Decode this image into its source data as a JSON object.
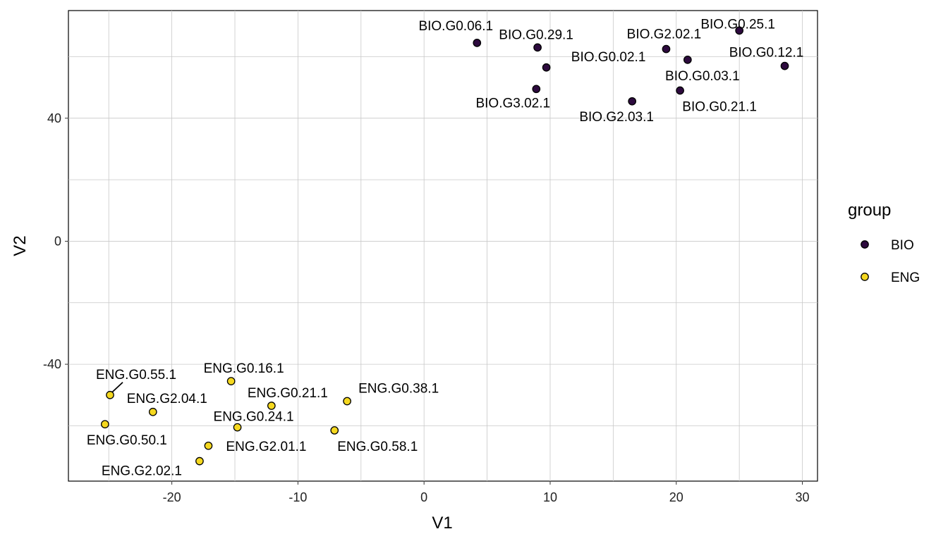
{
  "chart_data": {
    "type": "scatter",
    "xlabel": "V1",
    "ylabel": "V2",
    "xlim": [
      -28.2,
      31.2
    ],
    "ylim": [
      -78,
      75
    ],
    "x_ticks": [
      -20,
      -10,
      0,
      10,
      20,
      30
    ],
    "y_ticks": [
      -40,
      0,
      40
    ],
    "grid": true,
    "legend": {
      "title": "group",
      "placement": "right",
      "entries": [
        {
          "name": "BIO",
          "color": "#2d0a3e"
        },
        {
          "name": "ENG",
          "color": "#f5d81f"
        }
      ]
    },
    "series": [
      {
        "name": "BIO",
        "color": "#2d0a3e",
        "points": [
          {
            "label": "BIO.G0.06.1",
            "x": 4.2,
            "y": 64.5
          },
          {
            "label": "BIO.G0.29.1",
            "x": 9.0,
            "y": 63.0
          },
          {
            "label": "BIO.G2.02.1",
            "x": 19.2,
            "y": 62.5
          },
          {
            "label": "BIO.G0.25.1",
            "x": 25.0,
            "y": 68.5
          },
          {
            "label": "BIO.G0.02.1",
            "x": 9.7,
            "y": 56.5
          },
          {
            "label": "BIO.G0.12.1",
            "x": 28.6,
            "y": 57.0
          },
          {
            "label": "BIO.G0.03.1",
            "x": 20.9,
            "y": 59.0
          },
          {
            "label": "BIO.G3.02.1",
            "x": 8.9,
            "y": 49.5
          },
          {
            "label": "BIO.G2.03.1",
            "x": 16.5,
            "y": 45.5
          },
          {
            "label": "BIO.G0.21.1",
            "x": 20.3,
            "y": 49.0
          }
        ]
      },
      {
        "name": "ENG",
        "color": "#f5d81f",
        "points": [
          {
            "label": "ENG.G0.55.1",
            "x": -24.9,
            "y": -50.0
          },
          {
            "label": "ENG.G0.16.1",
            "x": -15.3,
            "y": -45.5
          },
          {
            "label": "ENG.G0.38.1",
            "x": -6.1,
            "y": -52.0
          },
          {
            "label": "ENG.G2.04.1",
            "x": -21.5,
            "y": -55.5
          },
          {
            "label": "ENG.G0.21.1",
            "x": -12.1,
            "y": -53.5
          },
          {
            "label": "ENG.G0.24.1",
            "x": -14.8,
            "y": -60.5
          },
          {
            "label": "ENG.G0.50.1",
            "x": -25.3,
            "y": -59.5
          },
          {
            "label": "ENG.G0.58.1",
            "x": -7.1,
            "y": -61.5
          },
          {
            "label": "ENG.G2.01.1",
            "x": -17.1,
            "y": -66.5
          },
          {
            "label": "ENG.G2.02.1",
            "x": -17.8,
            "y": -71.5
          }
        ]
      }
    ]
  }
}
